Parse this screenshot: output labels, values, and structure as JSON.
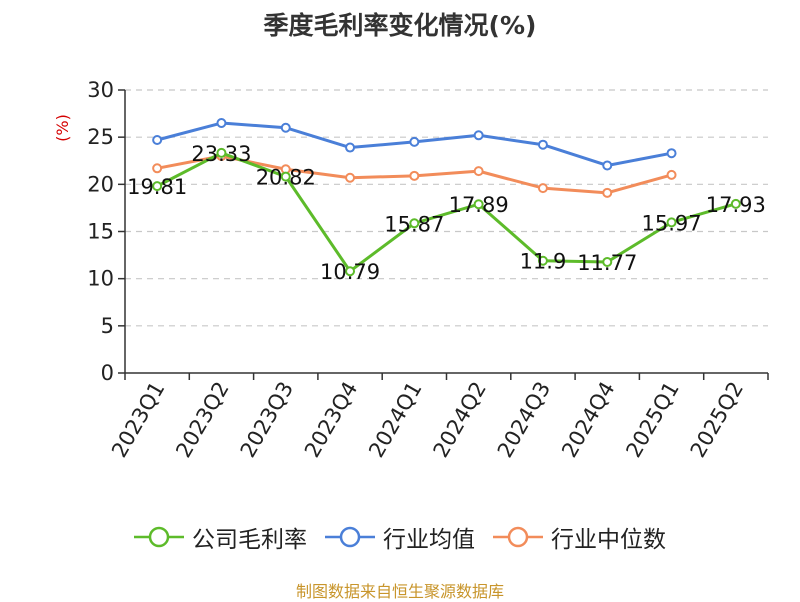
{
  "title": "季度毛利率变化情况(%)",
  "source_note": "制图数据来自恒生聚源数据库",
  "chart_data": {
    "type": "line",
    "categories": [
      "2023Q1",
      "2023Q2",
      "2023Q3",
      "2023Q4",
      "2024Q1",
      "2024Q2",
      "2024Q3",
      "2024Q4",
      "2025Q1",
      "2025Q2"
    ],
    "ylabel": "(%)",
    "ylim": [
      0,
      30
    ],
    "yticks": [
      0,
      5,
      10,
      15,
      20,
      25,
      30
    ],
    "grid": true,
    "legend_position": "bottom",
    "series": [
      {
        "name": "公司毛利率",
        "color": "#5dbb2a",
        "values": [
          19.81,
          23.33,
          20.82,
          10.79,
          15.87,
          17.89,
          11.9,
          11.77,
          15.97,
          17.93
        ],
        "labels": [
          "19.81",
          "23.33",
          "20.82",
          "10.79",
          "15.87",
          "17.89",
          "11.9",
          "11.77",
          "15.97",
          "17.93"
        ]
      },
      {
        "name": "行业均值",
        "color": "#4a7fd8",
        "values": [
          24.7,
          26.5,
          26.0,
          23.9,
          24.5,
          25.2,
          24.2,
          22.0,
          23.3,
          null
        ]
      },
      {
        "name": "行业中位数",
        "color": "#f28c5a",
        "values": [
          21.7,
          23.0,
          21.6,
          20.7,
          20.9,
          21.4,
          19.6,
          19.1,
          21.0,
          null
        ]
      }
    ]
  }
}
